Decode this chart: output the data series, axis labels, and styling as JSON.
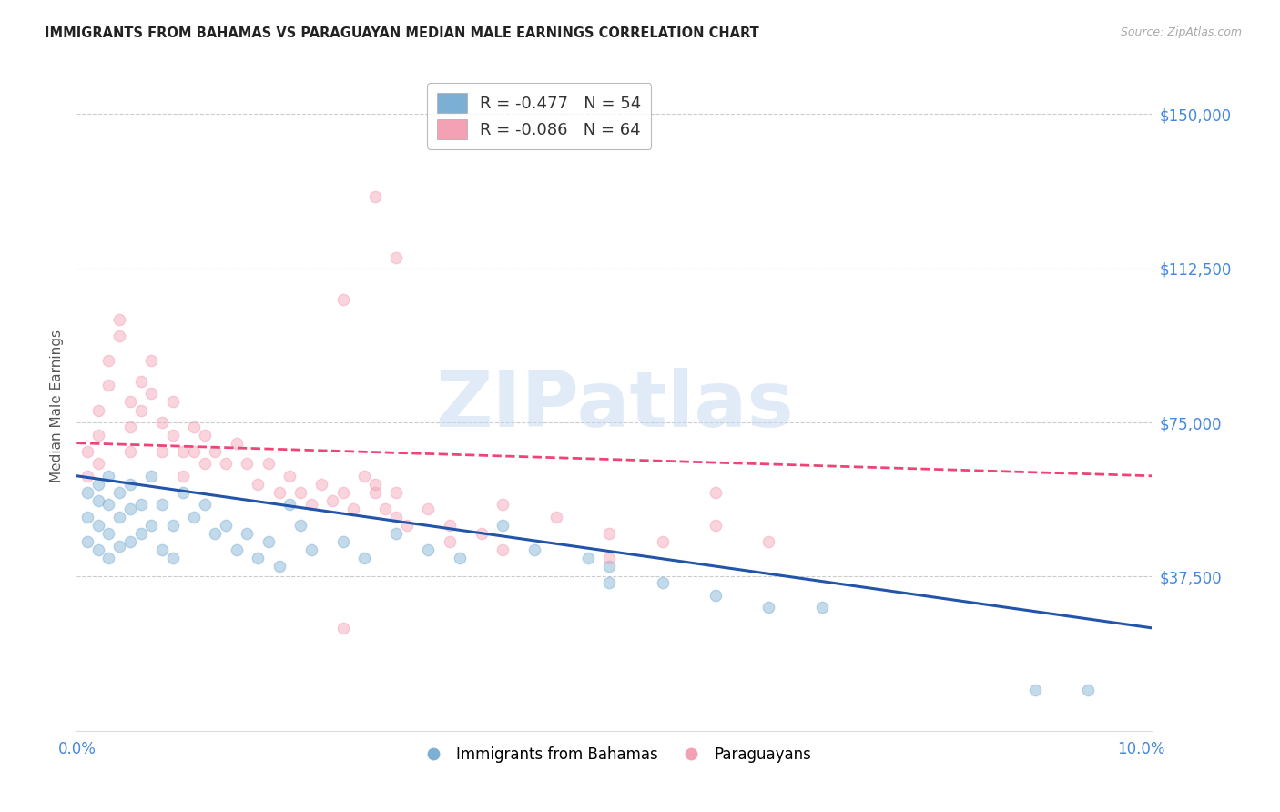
{
  "title": "IMMIGRANTS FROM BAHAMAS VS PARAGUAYAN MEDIAN MALE EARNINGS CORRELATION CHART",
  "source": "Source: ZipAtlas.com",
  "ylabel": "Median Male Earnings",
  "xlim": [
    0.0,
    0.101
  ],
  "ylim": [
    0,
    158000
  ],
  "ytick_vals": [
    0,
    37500,
    75000,
    112500,
    150000
  ],
  "ytick_labels": [
    "",
    "$37,500",
    "$75,000",
    "$112,500",
    "$150,000"
  ],
  "xtick_vals": [
    0.0,
    0.02,
    0.04,
    0.06,
    0.08,
    0.1
  ],
  "xtick_labels": [
    "0.0%",
    "",
    "",
    "",
    "",
    "10.0%"
  ],
  "background_color": "#ffffff",
  "grid_color": "#cccccc",
  "watermark_text": "ZIPatlas",
  "legend_r_labels": [
    "R = -0.477   N = 54",
    "R = -0.086   N = 64"
  ],
  "legend_series": [
    "Immigrants from Bahamas",
    "Paraguayans"
  ],
  "blue_color": "#7bafd4",
  "pink_color": "#f4a0b5",
  "title_color": "#222222",
  "ylabel_color": "#555555",
  "ytick_color": "#4488dd",
  "xtick_color": "#4488dd",
  "source_color": "#aaaaaa",
  "blue_scatter_x": [
    0.001,
    0.001,
    0.001,
    0.002,
    0.002,
    0.002,
    0.002,
    0.003,
    0.003,
    0.003,
    0.003,
    0.004,
    0.004,
    0.004,
    0.005,
    0.005,
    0.005,
    0.006,
    0.006,
    0.007,
    0.007,
    0.008,
    0.008,
    0.009,
    0.009,
    0.01,
    0.011,
    0.012,
    0.013,
    0.014,
    0.015,
    0.016,
    0.017,
    0.018,
    0.019,
    0.02,
    0.021,
    0.022,
    0.025,
    0.027,
    0.03,
    0.033,
    0.036,
    0.04,
    0.043,
    0.048,
    0.05,
    0.05,
    0.055,
    0.06,
    0.065,
    0.07,
    0.09,
    0.095
  ],
  "blue_scatter_y": [
    58000,
    52000,
    46000,
    60000,
    56000,
    50000,
    44000,
    62000,
    55000,
    48000,
    42000,
    58000,
    52000,
    45000,
    60000,
    54000,
    46000,
    55000,
    48000,
    62000,
    50000,
    55000,
    44000,
    50000,
    42000,
    58000,
    52000,
    55000,
    48000,
    50000,
    44000,
    48000,
    42000,
    46000,
    40000,
    55000,
    50000,
    44000,
    46000,
    42000,
    48000,
    44000,
    42000,
    50000,
    44000,
    42000,
    40000,
    36000,
    36000,
    33000,
    30000,
    30000,
    10000,
    10000
  ],
  "pink_scatter_x": [
    0.001,
    0.001,
    0.002,
    0.002,
    0.002,
    0.003,
    0.003,
    0.004,
    0.004,
    0.005,
    0.005,
    0.005,
    0.006,
    0.006,
    0.007,
    0.007,
    0.008,
    0.008,
    0.009,
    0.009,
    0.01,
    0.01,
    0.011,
    0.011,
    0.012,
    0.012,
    0.013,
    0.014,
    0.015,
    0.016,
    0.017,
    0.018,
    0.019,
    0.02,
    0.021,
    0.022,
    0.023,
    0.024,
    0.025,
    0.026,
    0.027,
    0.028,
    0.029,
    0.03,
    0.031,
    0.033,
    0.035,
    0.038,
    0.04,
    0.045,
    0.05,
    0.055,
    0.06,
    0.065,
    0.028,
    0.03,
    0.035,
    0.04,
    0.05,
    0.06,
    0.028,
    0.03,
    0.025,
    0.025
  ],
  "pink_scatter_y": [
    68000,
    62000,
    78000,
    72000,
    65000,
    90000,
    84000,
    100000,
    96000,
    80000,
    74000,
    68000,
    85000,
    78000,
    90000,
    82000,
    75000,
    68000,
    80000,
    72000,
    68000,
    62000,
    74000,
    68000,
    72000,
    65000,
    68000,
    65000,
    70000,
    65000,
    60000,
    65000,
    58000,
    62000,
    58000,
    55000,
    60000,
    56000,
    58000,
    54000,
    62000,
    58000,
    54000,
    52000,
    50000,
    54000,
    50000,
    48000,
    55000,
    52000,
    48000,
    46000,
    50000,
    46000,
    60000,
    58000,
    46000,
    44000,
    42000,
    58000,
    130000,
    115000,
    25000,
    105000
  ],
  "blue_trend_x": [
    0.0,
    0.101
  ],
  "blue_trend_y": [
    62000,
    25000
  ],
  "pink_trend_x": [
    0.0,
    0.101
  ],
  "pink_trend_y": [
    70000,
    62000
  ],
  "blue_trend_color": "#2255aa",
  "pink_trend_color": "#ee4477",
  "marker_size": 80,
  "marker_alpha": 0.45,
  "marker_edge_alpha": 0.7
}
